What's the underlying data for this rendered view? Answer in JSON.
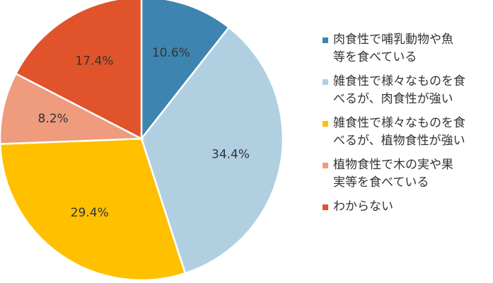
{
  "chart_data": {
    "type": "pie",
    "title": "",
    "categories": [
      "肉食性で哺乳動物や魚等を食べている",
      "雑食性で様々なものを食べるが、肉食性が強い",
      "雑食性で様々なものを食べるが、植物食性が強い",
      "植物食性で木の実や果実等を食べている",
      "わからない"
    ],
    "values": [
      10.6,
      34.4,
      29.4,
      8.2,
      17.4
    ],
    "labels": [
      "10.6%",
      "34.4%",
      "29.4%",
      "8.2%",
      "17.4%"
    ],
    "colors": [
      "#3e84b0",
      "#b0d0e2",
      "#ffc000",
      "#ee9b7e",
      "#e0532b"
    ],
    "start_angle_deg": 0,
    "direction": "clockwise",
    "legend_position": "right",
    "legend": [
      {
        "lines": [
          "肉食性で哺乳動物や魚",
          "等を食べている"
        ]
      },
      {
        "lines": [
          "雑食性で様々なものを食",
          "べるが、肉食性が強い"
        ]
      },
      {
        "lines": [
          "雑食性で様々なものを食",
          "べるが、植物食性が強い"
        ]
      },
      {
        "lines": [
          "植物食性で木の実や果",
          "実等を食べている"
        ]
      },
      {
        "lines": [
          "わからない"
        ]
      }
    ]
  }
}
